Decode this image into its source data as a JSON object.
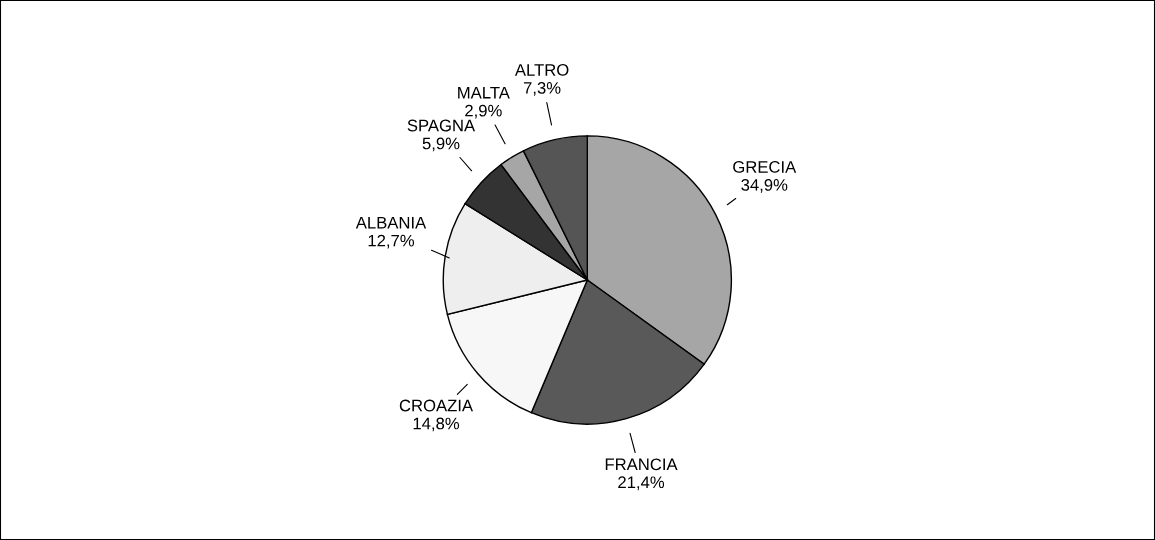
{
  "chart_data": {
    "type": "pie",
    "categories": [
      "GRECIA",
      "FRANCIA",
      "CROAZIA",
      "ALBANIA",
      "SPAGNA",
      "MALTA",
      "ALTRO"
    ],
    "values": [
      34.9,
      21.4,
      14.8,
      12.7,
      5.9,
      2.9,
      7.3
    ],
    "value_labels": [
      "34,9%",
      "21,4%",
      "14,8%",
      "12,7%",
      "5,9%",
      "2,9%",
      "7,3%"
    ],
    "colors": [
      "#a6a6a6",
      "#595959",
      "#f7f7f7",
      "#eeeeee",
      "#333333",
      "#a6a6a6",
      "#555555"
    ],
    "legend": false
  }
}
